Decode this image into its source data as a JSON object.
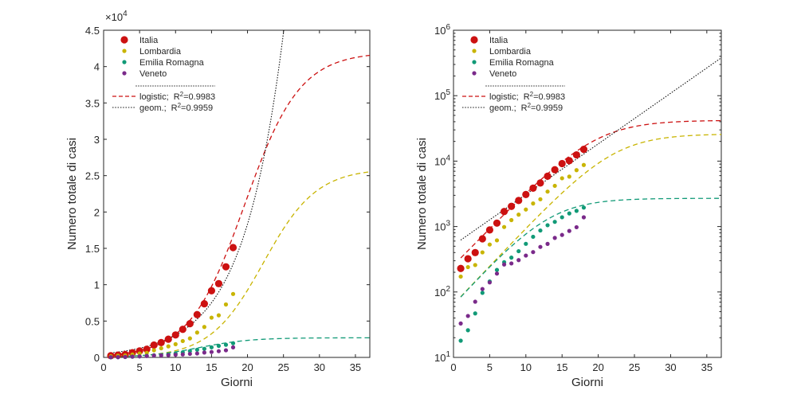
{
  "chart_data": [
    {
      "type": "scatter",
      "panel": "left",
      "xlabel": "Giorni",
      "ylabel": "Numero totale di casi",
      "xlim": [
        0,
        37
      ],
      "ylim": [
        0,
        45000
      ],
      "yscale": "linear",
      "y_multiplier_label": "×10",
      "y_multiplier_exp": "4",
      "xticks": [
        "0",
        "5",
        "10",
        "15",
        "20",
        "25",
        "30",
        "35"
      ],
      "xtick_values": [
        0,
        5,
        10,
        15,
        20,
        25,
        30,
        35
      ],
      "yticks": [
        "0",
        "0.5",
        "1",
        "1.5",
        "2",
        "2.5",
        "3",
        "3.5",
        "4",
        "4.5"
      ],
      "ytick_values": [
        0,
        5000,
        10000,
        15000,
        20000,
        25000,
        30000,
        35000,
        40000,
        45000
      ],
      "grid": false,
      "legend_position": "top-left"
    },
    {
      "type": "scatter",
      "panel": "right",
      "xlabel": "Giorni",
      "ylabel": "Numero totale di casi",
      "xlim": [
        0,
        37
      ],
      "ylim": [
        10,
        1000000
      ],
      "yscale": "log",
      "xticks": [
        "0",
        "5",
        "10",
        "15",
        "20",
        "25",
        "30",
        "35"
      ],
      "xtick_values": [
        0,
        5,
        10,
        15,
        20,
        25,
        30,
        35
      ],
      "ytick_exps": [
        "1",
        "2",
        "3",
        "4",
        "5",
        "6"
      ],
      "ytick_values": [
        10,
        100,
        1000,
        10000,
        100000,
        1000000
      ],
      "grid": false,
      "legend_position": "top-left"
    }
  ],
  "series": [
    {
      "name": "Italia",
      "color": "#cc1111",
      "marker_size": "large",
      "x": [
        1,
        2,
        3,
        4,
        5,
        6,
        7,
        8,
        9,
        10,
        11,
        12,
        13,
        14,
        15,
        16,
        17,
        18
      ],
      "y": [
        229,
        322,
        400,
        650,
        888,
        1128,
        1694,
        2036,
        2502,
        3089,
        3858,
        4636,
        5883,
        7375,
        9172,
        10149,
        12462,
        15113
      ]
    },
    {
      "name": "Lombardia",
      "color": "#c8b400",
      "marker_size": "small",
      "x": [
        1,
        2,
        3,
        4,
        5,
        6,
        7,
        8,
        9,
        10,
        11,
        12,
        13,
        14,
        15,
        16,
        17,
        18
      ],
      "y": [
        172,
        240,
        258,
        403,
        531,
        615,
        984,
        1254,
        1520,
        1820,
        2251,
        2612,
        3420,
        4189,
        5469,
        5791,
        7280,
        8725
      ]
    },
    {
      "name": "Emilia Romagna",
      "color": "#119a77",
      "marker_size": "small",
      "x": [
        1,
        2,
        3,
        4,
        5,
        6,
        7,
        8,
        9,
        10,
        11,
        12,
        13,
        14,
        15,
        16,
        17,
        18
      ],
      "y": [
        18,
        26,
        47,
        97,
        145,
        217,
        285,
        335,
        420,
        544,
        698,
        870,
        1048,
        1180,
        1386,
        1586,
        1739,
        1947
      ]
    },
    {
      "name": "Veneto",
      "color": "#7a2a8a",
      "marker_size": "small",
      "x": [
        1,
        2,
        3,
        4,
        5,
        6,
        7,
        8,
        9,
        10,
        11,
        12,
        13,
        14,
        15,
        16,
        17,
        18
      ],
      "y": [
        33,
        43,
        71,
        111,
        140,
        191,
        263,
        273,
        307,
        360,
        407,
        488,
        543,
        670,
        744,
        856,
        977,
        1384
      ]
    }
  ],
  "fits": {
    "logistic": {
      "label": "logistic;",
      "r2_text": "=0.9983",
      "style": "dashed",
      "color": "#cc1111",
      "curves": [
        {
          "series": "Italia",
          "K": 42000,
          "r": 0.26,
          "t0": 19.6,
          "color": "#cc1111"
        },
        {
          "series": "Lombardia",
          "K": 26000,
          "r": 0.27,
          "t0": 22.2,
          "color": "#c8b400"
        },
        {
          "series": "Emilia Romagna",
          "K": 2700,
          "r": 0.28,
          "t0": 13.3,
          "color": "#119a77"
        }
      ]
    },
    "geom": {
      "label": "geom.;",
      "r2_text": "=0.9959",
      "style": "dotted",
      "color": "#111111",
      "a": 520,
      "b": 1.195,
      "series": "Italia"
    }
  },
  "legend": {
    "items": [
      "Italia",
      "Lombardia",
      "Emilia Romagna",
      "Veneto"
    ],
    "r2_label": "R"
  }
}
